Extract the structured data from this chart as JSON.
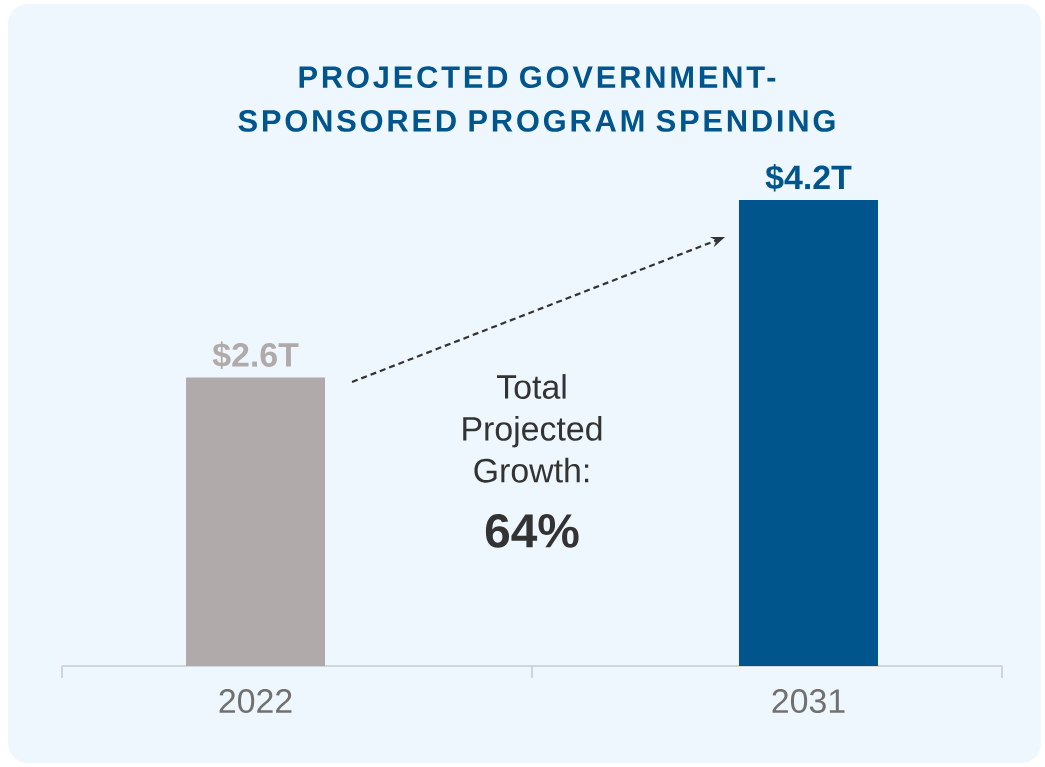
{
  "chart_data": {
    "type": "bar",
    "title": "PROJECTED GOVERNMENT-SPONSORED PROGRAM SPENDING",
    "categories": [
      "2022",
      "2031"
    ],
    "values": [
      2.6,
      4.2
    ],
    "colors": [
      "#b0abaa",
      "#00558c"
    ],
    "value_labels": [
      "$2.6T",
      "$4.2T"
    ],
    "annotations": [
      "Total Projected Growth:",
      "64%"
    ]
  }
}
